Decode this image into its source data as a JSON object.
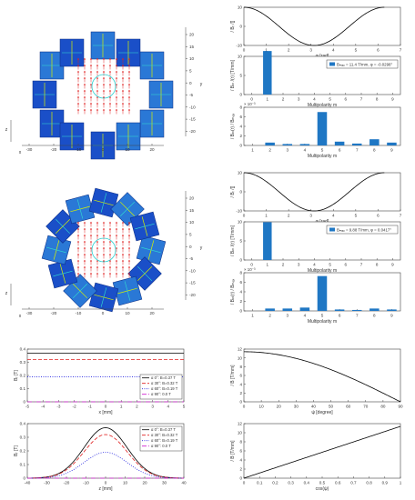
{
  "magnet_top": {
    "y_label": "y",
    "x_label": "x",
    "z_label": "z",
    "y_ticks": [
      "20",
      "15",
      "10",
      "5",
      "0",
      "-5",
      "-10",
      "-15",
      "-20"
    ],
    "x_ticks": [
      "-30",
      "-20",
      "-10",
      "0",
      "10",
      "20"
    ]
  },
  "magnet_mid": {
    "y_label": "y",
    "x_label": "x",
    "z_label": "z",
    "y_ticks": [
      "20",
      "15",
      "10",
      "5",
      "0",
      "-5",
      "-10",
      "-15",
      "-20"
    ],
    "x_ticks": [
      "-30",
      "-20",
      "-10",
      "0",
      "10",
      "20"
    ]
  },
  "chart_data": [
    {
      "type": "line",
      "id": "br-vs-phi-1",
      "xlabel": "φ [rad]",
      "ylabel": "/ Bᵣ /[]",
      "xlim": [
        0,
        7
      ],
      "ylim": [
        -10,
        10
      ],
      "x_ticks": [
        "0",
        "1",
        "2",
        "3",
        "4",
        "5",
        "6",
        "7"
      ],
      "y_ticks": [
        "10",
        "0",
        "-10"
      ],
      "series": [
        {
          "function": "cos",
          "amplitude": 10,
          "x_end": 6.28
        }
      ]
    },
    {
      "type": "bar",
      "id": "bm-main-1",
      "xlabel": "Multipolarity m",
      "ylabel": "/ Bₘ /(r) [T/mm]",
      "categories": [
        "0",
        "1",
        "2",
        "3",
        "4",
        "5",
        "6",
        "7",
        "8",
        "9"
      ],
      "values": [
        0,
        11.4,
        0,
        0,
        0,
        0,
        0,
        0,
        0,
        0
      ],
      "ylim": [
        0,
        10
      ],
      "y_ticks": [
        "10",
        "5",
        "0"
      ],
      "legend_position": "top-right",
      "legend_text": "Bₘₐₓ = 11.4 T/mm,  φ = -0.0298°"
    },
    {
      "type": "bar",
      "id": "bm-ratio-1",
      "xlabel": "Multipolarity m",
      "ylabel": "/ Bₘ(r) / Bₘₐₓ",
      "scale_note": "× 10⁻³",
      "categories": [
        "1",
        "2",
        "3",
        "4",
        "5",
        "6",
        "7",
        "8",
        "9"
      ],
      "values": [
        0,
        0.6,
        0.3,
        0.3,
        7.0,
        0.8,
        0.4,
        1.3,
        0.6
      ],
      "ylim": [
        0,
        8
      ],
      "y_ticks": [
        "8",
        "6",
        "4",
        "2",
        "0"
      ]
    },
    {
      "type": "line",
      "id": "br-vs-phi-2",
      "xlabel": "φ [rad]",
      "ylabel": "/ Bᵣ /[]",
      "xlim": [
        0,
        7
      ],
      "ylim": [
        -10,
        10
      ],
      "x_ticks": [
        "0",
        "1",
        "2",
        "3",
        "4",
        "5",
        "6",
        "7"
      ],
      "y_ticks": [
        "10",
        "0",
        "-10"
      ],
      "series": [
        {
          "function": "cos",
          "amplitude": 10,
          "x_end": 6.28
        }
      ]
    },
    {
      "type": "bar",
      "id": "bm-main-2",
      "xlabel": "Multipolarity m",
      "ylabel": "/ Bₘ /(r) [T/mm]",
      "categories": [
        "0",
        "1",
        "2",
        "3",
        "4",
        "5",
        "6",
        "7",
        "8",
        "9"
      ],
      "values": [
        0,
        9.9,
        0,
        0,
        0,
        0,
        0,
        0,
        0,
        0
      ],
      "ylim": [
        0,
        10
      ],
      "y_ticks": [
        "10",
        "5",
        "0"
      ],
      "legend_position": "top-right",
      "legend_text": "Bₘₐₓ = 9.88 T/mm,  φ = 0.0417°"
    },
    {
      "type": "bar",
      "id": "bm-ratio-2",
      "xlabel": "Multipolarity m",
      "ylabel": "/ Bₘ(r) / Bₘₐₓ",
      "scale_note": "× 10⁻³",
      "categories": [
        "1",
        "2",
        "3",
        "4",
        "5",
        "6",
        "7",
        "8",
        "9"
      ],
      "values": [
        0,
        0.5,
        0.5,
        0.7,
        7.3,
        0.3,
        0.2,
        0.5,
        0.3
      ],
      "ylim": [
        0,
        8
      ],
      "y_ticks": [
        "8",
        "6",
        "4",
        "2",
        "0"
      ]
    },
    {
      "type": "line",
      "id": "b-vs-x",
      "xlabel": "x [mm]",
      "ylabel": "Bᵣ [T]",
      "xlim": [
        -5,
        5
      ],
      "ylim": [
        0,
        0.4
      ],
      "x_ticks": [
        "-5",
        "-4",
        "-3",
        "-2",
        "-1",
        "0",
        "1",
        "2",
        "3",
        "4",
        "5"
      ],
      "y_ticks": [
        "0.4",
        "0.3",
        "0.2",
        "0.1",
        "0"
      ],
      "legend_position": "bottom-right",
      "series": [
        {
          "name": "α 0°:  B=0.37 T",
          "y": 0.37,
          "color": "#000000",
          "dash": ""
        },
        {
          "name": "α 30°: B=0.32 T",
          "y": 0.32,
          "color": "#e02020",
          "dash": "4,2"
        },
        {
          "name": "α 60°: B=0.19 T",
          "y": 0.19,
          "color": "#2020e0",
          "dash": "1,1.5"
        },
        {
          "name": "α 90°: 0.0 T",
          "y": 0.0,
          "color": "#d020d0",
          "dash": "5,2,1,2"
        }
      ]
    },
    {
      "type": "line",
      "id": "b-vs-z",
      "xlabel": "z [mm]",
      "ylabel": "Bᵣ [T]",
      "xlim": [
        -40,
        40
      ],
      "ylim": [
        0,
        0.4
      ],
      "x_ticks": [
        "-40",
        "-30",
        "-20",
        "-10",
        "0",
        "10",
        "20",
        "30",
        "40"
      ],
      "y_ticks": [
        "0.4",
        "0.3",
        "0.2",
        "0.1",
        "0"
      ],
      "legend_position": "top-right",
      "series": [
        {
          "name": "α 0°:  B=0.37 T",
          "peak": 0.37,
          "color": "#000000",
          "dash": ""
        },
        {
          "name": "α 30°: B=0.32 T",
          "peak": 0.32,
          "color": "#e02020",
          "dash": "4,2"
        },
        {
          "name": "α 60°: B=0.19 T",
          "peak": 0.19,
          "color": "#2020e0",
          "dash": "1,1.5"
        },
        {
          "name": "α 90°: 0.0 T",
          "peak": 0.0,
          "color": "#d020d0",
          "dash": "5,2,1,2"
        }
      ]
    },
    {
      "type": "line",
      "id": "grad-vs-angle",
      "xlabel": "ψ [degree]",
      "ylabel": "/ B [T/mm]",
      "xlim": [
        0,
        90
      ],
      "ylim": [
        0,
        12
      ],
      "x_ticks": [
        "0",
        "10",
        "20",
        "30",
        "40",
        "50",
        "60",
        "70",
        "80",
        "90"
      ],
      "y_ticks": [
        "12",
        "10",
        "8",
        "6",
        "4",
        "2",
        "0"
      ],
      "series": [
        {
          "function": "cos",
          "amplitude": 11.4
        }
      ]
    },
    {
      "type": "line",
      "id": "grad-vs-cos",
      "xlabel": "cos(ψ)",
      "ylabel": "/ B [T/mm]",
      "xlim": [
        0,
        1
      ],
      "ylim": [
        0,
        12
      ],
      "x_ticks": [
        "0",
        "0.1",
        "0.2",
        "0.3",
        "0.4",
        "0.5",
        "0.6",
        "0.7",
        "0.8",
        "0.9",
        "1"
      ],
      "y_ticks": [
        "12",
        "10",
        "8",
        "6",
        "4",
        "2",
        "0"
      ],
      "series": [
        {
          "function": "linear",
          "slope": 11.4
        }
      ]
    }
  ]
}
